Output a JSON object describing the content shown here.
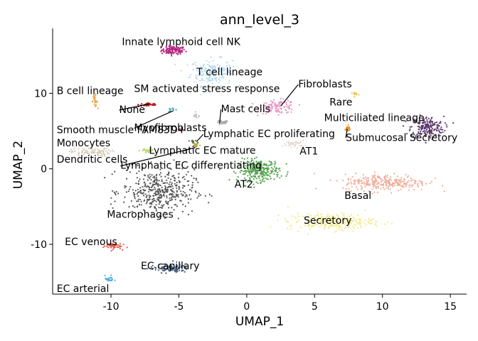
{
  "chart_data": {
    "type": "scatter",
    "title": "ann_level_3",
    "xlabel": "UMAP_1",
    "ylabel": "UMAP_2",
    "xlim": [
      -14.3,
      16.2
    ],
    "ylim": [
      -16.6,
      18.6
    ],
    "xticks": [
      -10,
      -5,
      0,
      5,
      10,
      15
    ],
    "yticks": [
      -10,
      0,
      10
    ],
    "xtick_labels": [
      "-10",
      "-5",
      "0",
      "5",
      "10",
      "15"
    ],
    "ytick_labels": [
      "-10",
      "0",
      "10"
    ],
    "grid": false,
    "legend": "none (labels placed on clusters)",
    "clusters": [
      {
        "name": "Innate lymphoid cell NK",
        "color": "#b5247f",
        "center": [
          -5.4,
          15.7
        ],
        "spread": [
          0.8,
          0.5
        ],
        "n": 110
      },
      {
        "name": "T cell lineage",
        "color": "#b7dcef",
        "center": [
          -2.6,
          12.8
        ],
        "spread": [
          1.4,
          1.6
        ],
        "n": 180
      },
      {
        "name": "B cell lineage",
        "color": "#e6a64a",
        "center": [
          -11.2,
          9.0
        ],
        "spread": [
          0.2,
          0.7
        ],
        "n": 25
      },
      {
        "name": "SM activated stress response",
        "color": "#3aa7b5",
        "center": [
          -5.5,
          7.8
        ],
        "spread": [
          0.3,
          0.2
        ],
        "n": 10
      },
      {
        "name": "None",
        "color": "#b22222",
        "center": [
          -7.2,
          8.5
        ],
        "spread": [
          0.7,
          0.25
        ],
        "n": 40
      },
      {
        "name": "Myofibroblasts",
        "color": "#bfbfbf",
        "center": [
          -3.7,
          7.0
        ],
        "spread": [
          0.3,
          0.3
        ],
        "n": 12
      },
      {
        "name": "Smooth muscle FAM83D+",
        "color": "#d45ba2",
        "center": [
          -4.9,
          5.1
        ],
        "spread": [
          0.2,
          0.2
        ],
        "n": 5
      },
      {
        "name": "Mast cells",
        "color": "#a9a9a9",
        "center": [
          -1.8,
          6.1
        ],
        "spread": [
          0.4,
          0.3
        ],
        "n": 30
      },
      {
        "name": "Fibroblasts",
        "color": "#e59ac4",
        "center": [
          2.3,
          8.2
        ],
        "spread": [
          1.2,
          0.8
        ],
        "n": 110
      },
      {
        "name": "Rare",
        "color": "#e5c64a",
        "center": [
          8.0,
          10.0
        ],
        "spread": [
          0.2,
          0.2
        ],
        "n": 10
      },
      {
        "name": "Multiciliated lineage",
        "color": "#5c3a6b",
        "center": [
          13.3,
          5.5
        ],
        "spread": [
          1.1,
          1.3
        ],
        "n": 200
      },
      {
        "name": "Submucosal Secretory",
        "color": "#e7962f",
        "center": [
          7.4,
          5.3
        ],
        "spread": [
          0.25,
          0.4
        ],
        "n": 25
      },
      {
        "name": "Monocytes",
        "color": "#d9cbb6",
        "center": [
          -11.5,
          2.2
        ],
        "spread": [
          1.3,
          0.5
        ],
        "n": 90
      },
      {
        "name": "Dendritic cells",
        "color": "#bcd66a",
        "center": [
          -7.3,
          2.4
        ],
        "spread": [
          0.5,
          0.3
        ],
        "n": 25
      },
      {
        "name": "Lymphatic EC proliferating",
        "color": "#5a6b2b",
        "center": [
          -3.9,
          3.5
        ],
        "spread": [
          0.3,
          0.25
        ],
        "n": 10
      },
      {
        "name": "Lymphatic EC mature",
        "color": "#c7a233",
        "center": [
          -3.7,
          3.2
        ],
        "spread": [
          0.2,
          0.2
        ],
        "n": 8
      },
      {
        "name": "Lymphatic EC differentiating",
        "color": "#8a9a3a",
        "center": [
          -3.8,
          2.9
        ],
        "spread": [
          0.2,
          0.2
        ],
        "n": 6
      },
      {
        "name": "AT1",
        "color": "#ead6cc",
        "center": [
          3.5,
          3.3
        ],
        "spread": [
          0.7,
          0.4
        ],
        "n": 40
      },
      {
        "name": "AT2",
        "color": "#56a552",
        "center": [
          0.9,
          -0.2
        ],
        "spread": [
          1.4,
          1.3
        ],
        "n": 280
      },
      {
        "name": "Macrophages",
        "color": "#575757",
        "center": [
          -6.5,
          -3.0
        ],
        "spread": [
          2.4,
          2.6
        ],
        "n": 420
      },
      {
        "name": "Basal",
        "color": "#f0ad9a",
        "center": [
          10.2,
          -1.8
        ],
        "spread": [
          2.8,
          1.0
        ],
        "n": 280
      },
      {
        "name": "Secretory",
        "color": "#f4ea8a",
        "center": [
          6.2,
          -7.0
        ],
        "spread": [
          2.9,
          1.0
        ],
        "n": 260
      },
      {
        "name": "EC venous",
        "color": "#e8584a",
        "center": [
          -9.9,
          -10.2
        ],
        "spread": [
          0.6,
          0.4
        ],
        "n": 50
      },
      {
        "name": "EC capillary",
        "color": "#3f5c7e",
        "center": [
          -5.7,
          -13.2
        ],
        "spread": [
          1.3,
          0.5
        ],
        "n": 90
      },
      {
        "name": "EC arterial",
        "color": "#4fb0e6",
        "center": [
          -10.1,
          -14.6
        ],
        "spread": [
          0.3,
          0.4
        ],
        "n": 25
      }
    ],
    "labels": [
      {
        "text": "Innate lymphoid cell NK",
        "x": -9.2,
        "y": 16.4,
        "anchor": "start"
      },
      {
        "text": "T cell lineage",
        "x": -3.7,
        "y": 12.4,
        "anchor": "start"
      },
      {
        "text": "B cell lineage",
        "x": -14.0,
        "y": 9.9,
        "anchor": "start"
      },
      {
        "text": "SM activated stress response",
        "x": -8.3,
        "y": 10.2,
        "anchor": "start"
      },
      {
        "text": "Fibroblasts",
        "x": 3.8,
        "y": 10.8,
        "anchor": "start",
        "leader_to": [
          2.5,
          8.3
        ]
      },
      {
        "text": "None",
        "x": -9.4,
        "y": 7.4,
        "anchor": "start",
        "leader_to": [
          -7.2,
          8.6
        ]
      },
      {
        "text": "Mast cells",
        "x": -1.9,
        "y": 7.5,
        "anchor": "start",
        "leader_to": [
          -2.0,
          6.0
        ]
      },
      {
        "text": "Rare",
        "x": 6.1,
        "y": 8.4,
        "anchor": "start"
      },
      {
        "text": "Multiciliated lineage",
        "x": 5.7,
        "y": 6.3,
        "anchor": "start"
      },
      {
        "text": "Smooth muscle FAM83D+",
        "x": -14.0,
        "y": 4.7,
        "anchor": "start"
      },
      {
        "text": "Myofibroblasts",
        "x": -8.3,
        "y": 5.0,
        "anchor": "start",
        "leader_to": [
          -5.4,
          7.7
        ]
      },
      {
        "text": "Lymphatic EC proliferating",
        "x": -3.2,
        "y": 4.2,
        "anchor": "start",
        "leader_to": [
          -3.7,
          3.6
        ]
      },
      {
        "text": "Submucosal Secretory",
        "x": 7.3,
        "y": 3.7,
        "anchor": "start",
        "leader_to": [
          7.4,
          5.3
        ]
      },
      {
        "text": "Monocytes",
        "x": -14.0,
        "y": 3.0,
        "anchor": "start"
      },
      {
        "text": "Lymphatic EC mature",
        "x": -7.2,
        "y": 2.0,
        "anchor": "start"
      },
      {
        "text": "AT1",
        "x": 3.9,
        "y": 1.9,
        "anchor": "start"
      },
      {
        "text": "Dendritic cells",
        "x": -14.0,
        "y": 0.8,
        "anchor": "start"
      },
      {
        "text": "Lymphatic EC differentiating",
        "x": -9.3,
        "y": 0.0,
        "anchor": "start",
        "leader_to": [
          -3.8,
          2.8
        ]
      },
      {
        "text": "AT2",
        "x": -0.9,
        "y": -2.5,
        "anchor": "start"
      },
      {
        "text": "Basal",
        "x": 7.2,
        "y": -4.0,
        "anchor": "start"
      },
      {
        "text": "Macrophages",
        "x": -10.3,
        "y": -6.5,
        "anchor": "start"
      },
      {
        "text": "Secretory",
        "x": 4.2,
        "y": -7.3,
        "anchor": "start"
      },
      {
        "text": "EC venous",
        "x": -13.4,
        "y": -10.1,
        "anchor": "start"
      },
      {
        "text": "EC capillary",
        "x": -7.8,
        "y": -13.3,
        "anchor": "start"
      },
      {
        "text": "EC arterial",
        "x": -14.0,
        "y": -16.3,
        "anchor": "start"
      }
    ]
  }
}
